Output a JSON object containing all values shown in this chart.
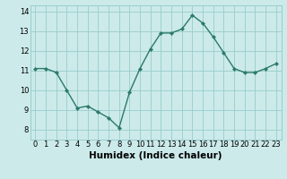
{
  "x": [
    0,
    1,
    2,
    3,
    4,
    5,
    6,
    7,
    8,
    9,
    10,
    11,
    12,
    13,
    14,
    15,
    16,
    17,
    18,
    19,
    20,
    21,
    22,
    23
  ],
  "y": [
    11.1,
    11.1,
    10.9,
    10.0,
    9.1,
    9.2,
    8.9,
    8.6,
    8.1,
    9.9,
    11.1,
    12.1,
    12.9,
    12.9,
    13.1,
    13.8,
    13.4,
    12.7,
    11.9,
    11.1,
    10.9,
    10.9,
    11.1,
    11.35
  ],
  "line_color": "#2a7a6a",
  "marker": "D",
  "marker_size": 2.2,
  "bg_color": "#cceaea",
  "grid_color": "#99cccc",
  "xlabel": "Humidex (Indice chaleur)",
  "ylim": [
    7.5,
    14.3
  ],
  "xlim": [
    -0.5,
    23.5
  ],
  "yticks": [
    8,
    9,
    10,
    11,
    12,
    13,
    14
  ],
  "xticks": [
    0,
    1,
    2,
    3,
    4,
    5,
    6,
    7,
    8,
    9,
    10,
    11,
    12,
    13,
    14,
    15,
    16,
    17,
    18,
    19,
    20,
    21,
    22,
    23
  ],
  "tick_fontsize": 6.0,
  "xlabel_fontsize": 7.5,
  "line_width": 1.0
}
